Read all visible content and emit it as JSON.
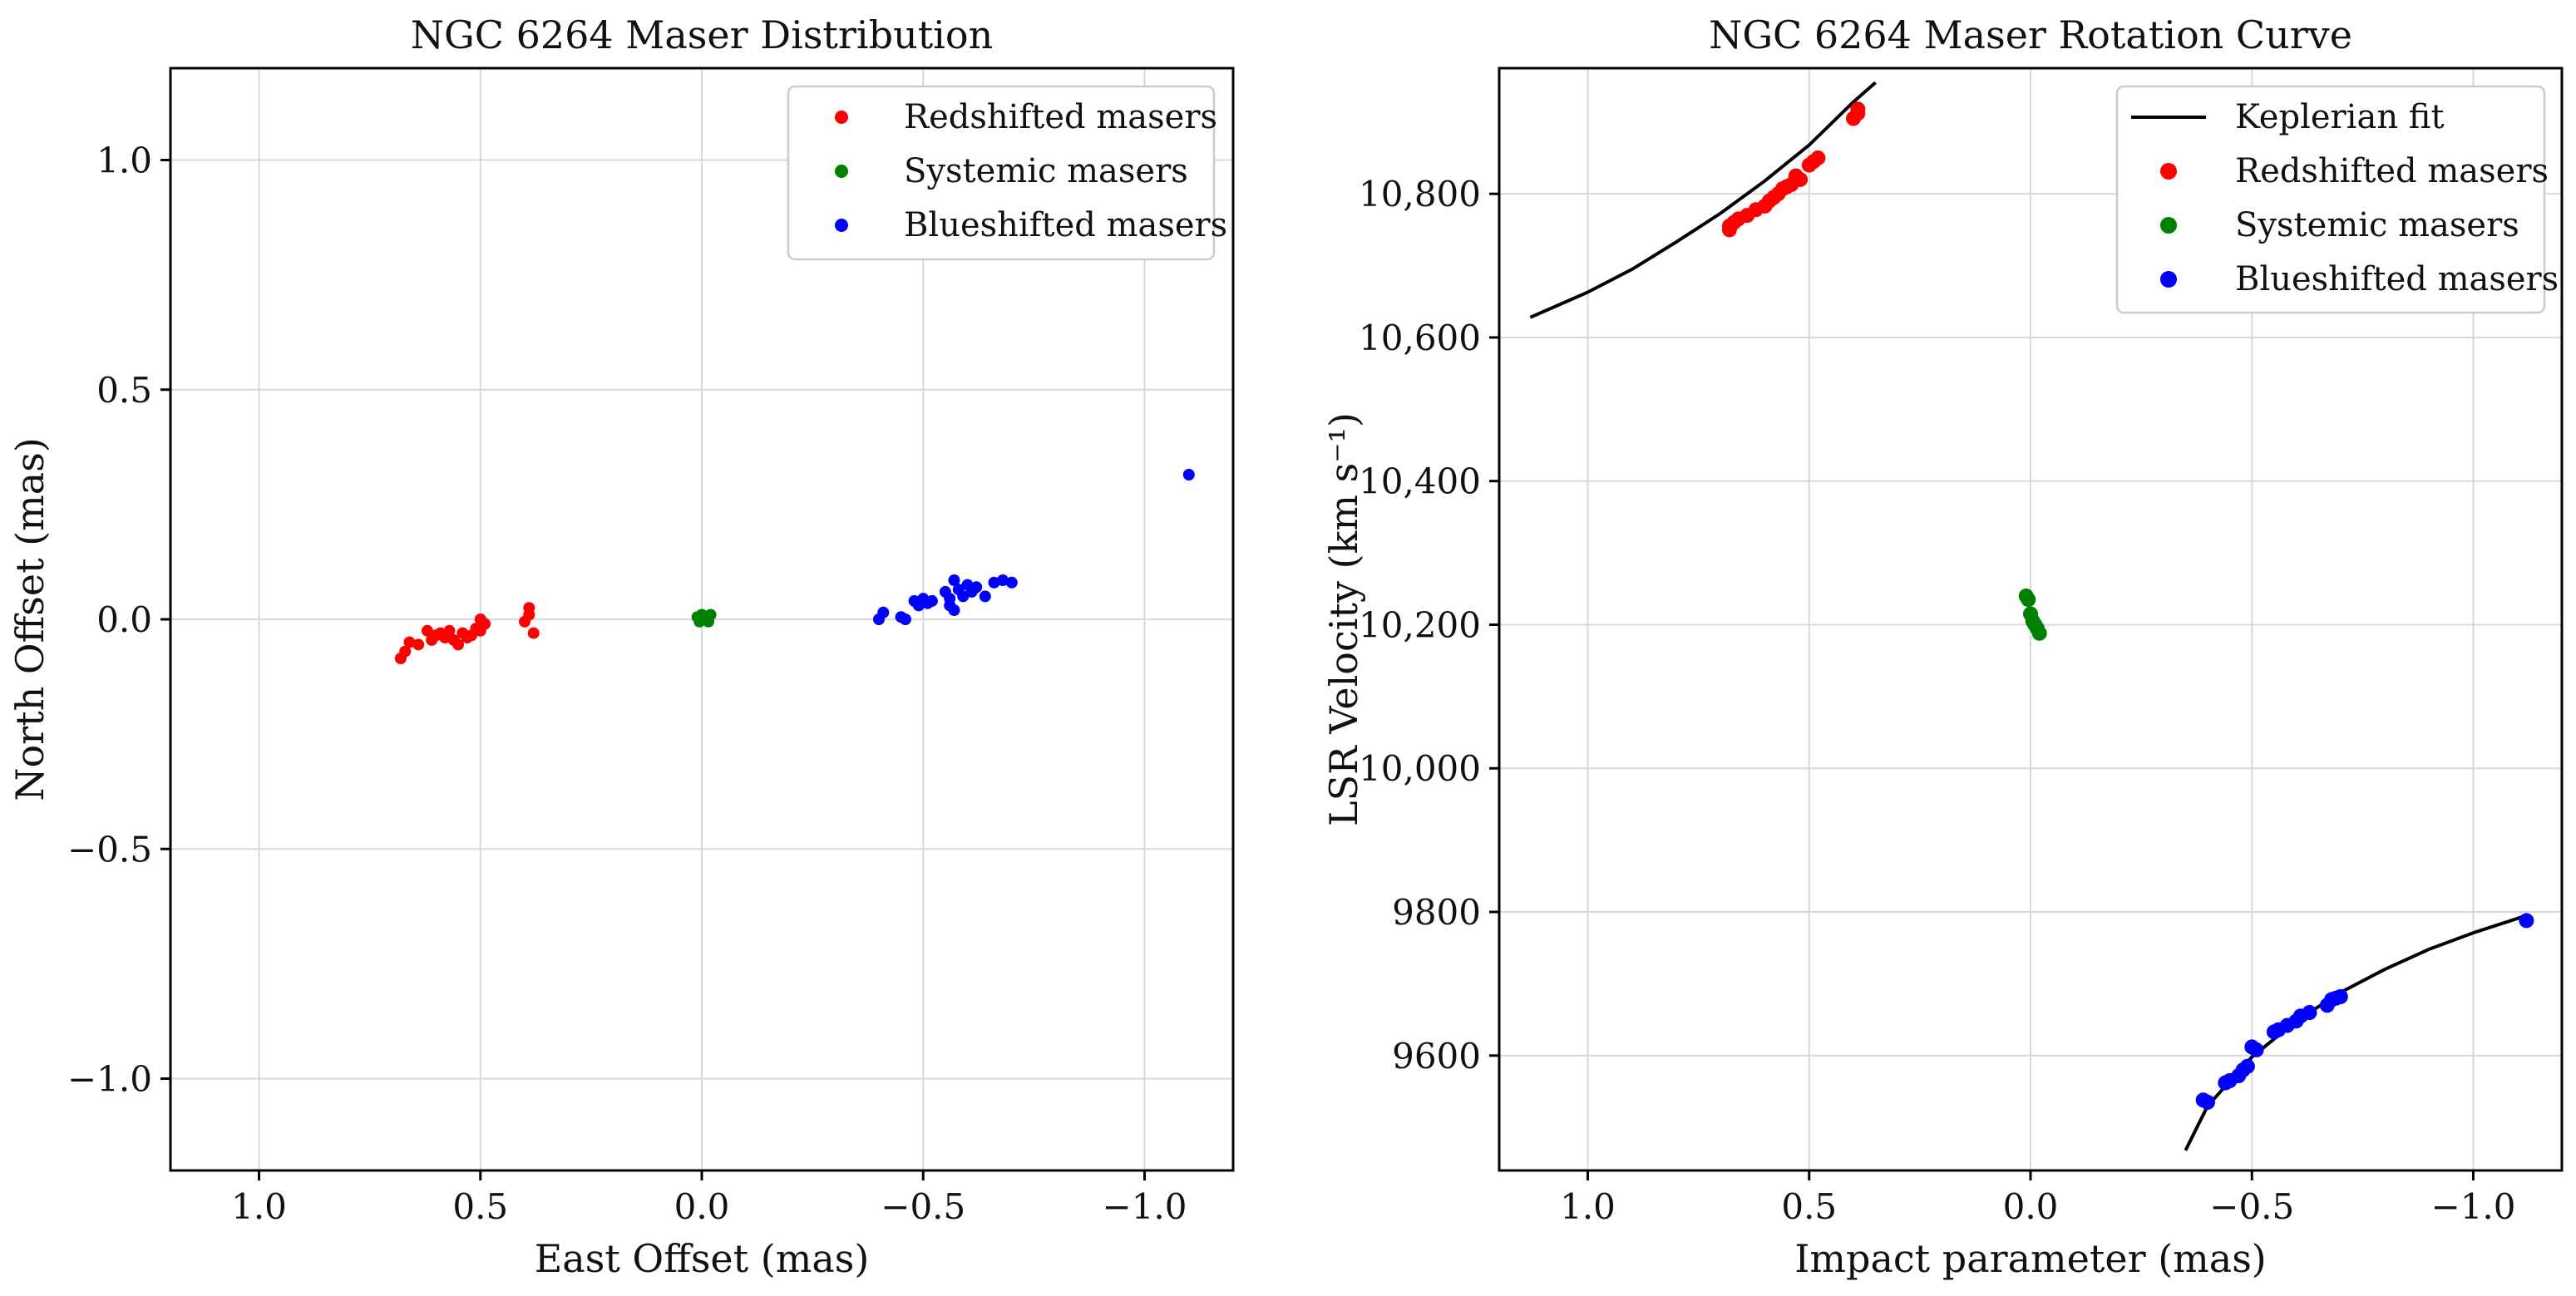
{
  "chart_data": [
    {
      "type": "scatter",
      "title": "NGC 6264 Maser Distribution",
      "xlabel": "East Offset (mas)",
      "ylabel": "North Offset (mas)",
      "xlim": [
        1.2,
        -1.2
      ],
      "ylim": [
        -1.2,
        1.2
      ],
      "x_ticks": [
        1.0,
        0.5,
        0.0,
        -0.5,
        -1.0
      ],
      "x_tick_labels": [
        "1.0",
        "0.5",
        "0.0",
        "−0.5",
        "−1.0"
      ],
      "y_ticks": [
        1.0,
        0.5,
        0.0,
        -0.5,
        -1.0
      ],
      "y_tick_labels": [
        "1.0",
        "0.5",
        "0.0",
        "−0.5",
        "−1.0"
      ],
      "grid": true,
      "legend_position": "top-right",
      "series": [
        {
          "name": "Redshifted masers",
          "color": "#ff0000",
          "x": [
            0.68,
            0.67,
            0.66,
            0.64,
            0.62,
            0.61,
            0.6,
            0.59,
            0.58,
            0.57,
            0.56,
            0.55,
            0.54,
            0.53,
            0.52,
            0.51,
            0.5,
            0.5,
            0.49,
            0.4,
            0.39,
            0.39,
            0.38
          ],
          "y": [
            -0.085,
            -0.07,
            -0.05,
            -0.055,
            -0.025,
            -0.045,
            -0.035,
            -0.03,
            -0.04,
            -0.025,
            -0.045,
            -0.055,
            -0.03,
            -0.04,
            -0.035,
            -0.02,
            -0.025,
            0.0,
            -0.01,
            -0.005,
            0.01,
            0.025,
            -0.03
          ]
        },
        {
          "name": "Systemic masers",
          "color": "#008000",
          "x": [
            0.01,
            0.005,
            0.0,
            -0.005,
            -0.01,
            -0.015,
            -0.02
          ],
          "y": [
            0.005,
            -0.005,
            0.01,
            0.0,
            0.005,
            -0.005,
            0.01
          ]
        },
        {
          "name": "Blueshifted masers",
          "color": "#0000ff",
          "x": [
            -0.4,
            -0.41,
            -0.45,
            -0.46,
            -0.48,
            -0.49,
            -0.5,
            -0.51,
            -0.52,
            -0.55,
            -0.56,
            -0.56,
            -0.57,
            -0.57,
            -0.58,
            -0.59,
            -0.6,
            -0.61,
            -0.62,
            -0.64,
            -0.66,
            -0.68,
            -0.7,
            -1.1
          ],
          "y": [
            0.0,
            0.015,
            0.005,
            0.0,
            0.04,
            0.03,
            0.045,
            0.035,
            0.04,
            0.06,
            0.045,
            0.03,
            0.085,
            0.02,
            0.065,
            0.05,
            0.075,
            0.06,
            0.07,
            0.05,
            0.08,
            0.085,
            0.08,
            0.315
          ]
        }
      ]
    },
    {
      "type": "scatter",
      "title": "NGC 6264 Maser Rotation Curve",
      "xlabel": "Impact parameter (mas)",
      "ylabel": "LSR Velocity (km s⁻¹)",
      "xlim": [
        1.2,
        -1.2
      ],
      "ylim": [
        9440,
        10975
      ],
      "x_ticks": [
        1.0,
        0.5,
        0.0,
        -0.5,
        -1.0
      ],
      "x_tick_labels": [
        "1.0",
        "0.5",
        "0.0",
        "−0.5",
        "−1.0"
      ],
      "y_ticks": [
        9600,
        9800,
        10000,
        10200,
        10400,
        10600,
        10800
      ],
      "y_tick_labels": [
        "9600",
        "9800",
        "10,000",
        "10,200",
        "10,400",
        "10,600",
        "10,800"
      ],
      "grid": true,
      "legend_position": "top-right",
      "series": [
        {
          "name": "Keplerian fit",
          "kind": "line",
          "color": "#000000",
          "x": [
            1.13,
            1.0,
            0.9,
            0.8,
            0.7,
            0.6,
            0.5,
            0.45,
            0.4,
            0.35
          ],
          "y": [
            10628,
            10663,
            10695,
            10733,
            10773,
            10818,
            10868,
            10898,
            10928,
            10955
          ]
        },
        {
          "name": "Keplerian fit",
          "kind": "line",
          "color": "#000000",
          "x": [
            -0.35,
            -0.4,
            -0.5,
            -0.6,
            -0.7,
            -0.8,
            -0.9,
            -1.0,
            -1.12
          ],
          "y": [
            9468,
            9530,
            9598,
            9648,
            9688,
            9720,
            9748,
            9771,
            9795
          ]
        },
        {
          "name": "Redshifted masers",
          "kind": "points",
          "color": "#ff0000",
          "x": [
            0.68,
            0.68,
            0.67,
            0.66,
            0.64,
            0.62,
            0.6,
            0.59,
            0.58,
            0.57,
            0.56,
            0.55,
            0.54,
            0.53,
            0.52,
            0.5,
            0.49,
            0.48,
            0.4,
            0.39,
            0.39
          ],
          "y": [
            10750,
            10755,
            10760,
            10765,
            10770,
            10778,
            10783,
            10790,
            10795,
            10800,
            10807,
            10810,
            10813,
            10825,
            10820,
            10840,
            10845,
            10850,
            10905,
            10912,
            10918
          ]
        },
        {
          "name": "Systemic masers",
          "kind": "points",
          "color": "#008000",
          "x": [
            0.01,
            0.005,
            0.0,
            -0.005,
            -0.01,
            -0.015,
            -0.02
          ],
          "y": [
            10240,
            10235,
            10215,
            10205,
            10200,
            10195,
            10188
          ]
        },
        {
          "name": "Blueshifted masers",
          "kind": "points",
          "color": "#0000ff",
          "x": [
            -0.39,
            -0.4,
            -0.44,
            -0.45,
            -0.47,
            -0.48,
            -0.49,
            -0.5,
            -0.51,
            -0.55,
            -0.56,
            -0.58,
            -0.6,
            -0.61,
            -0.63,
            -0.67,
            -0.68,
            -0.69,
            -0.7,
            -1.12
          ],
          "y": [
            9538,
            9535,
            9562,
            9565,
            9572,
            9580,
            9585,
            9612,
            9608,
            9633,
            9636,
            9642,
            9648,
            9655,
            9660,
            9670,
            9678,
            9680,
            9682,
            9788
          ]
        }
      ]
    }
  ]
}
